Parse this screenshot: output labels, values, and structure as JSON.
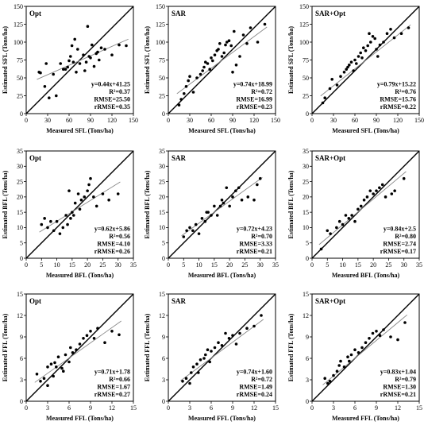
{
  "chart_data": [
    {
      "type": "scatter",
      "title": "Opt",
      "xlabel": "Measured SFL (Tons/ha)",
      "ylabel": "Estimated SFL (Tons/ha)",
      "xlim": [
        0,
        150
      ],
      "ylim": [
        0,
        150
      ],
      "xticks": [
        0,
        30,
        60,
        90,
        120,
        150
      ],
      "yticks": [
        0,
        25,
        50,
        75,
        100,
        125,
        150
      ],
      "fit": {
        "slope": 0.44,
        "intercept": 41.25
      },
      "stats": [
        "y=0.44x+41.25",
        "R²=0.37",
        "RMSE=25.50",
        "rRMSE=0.35"
      ],
      "points": [
        [
          18,
          58
        ],
        [
          20,
          57
        ],
        [
          26,
          38
        ],
        [
          28,
          70
        ],
        [
          32,
          22
        ],
        [
          38,
          55
        ],
        [
          42,
          25
        ],
        [
          48,
          70
        ],
        [
          52,
          62
        ],
        [
          55,
          62
        ],
        [
          58,
          65
        ],
        [
          60,
          74
        ],
        [
          62,
          80
        ],
        [
          64,
          95
        ],
        [
          66,
          72
        ],
        [
          68,
          104
        ],
        [
          70,
          58
        ],
        [
          72,
          90
        ],
        [
          75,
          70
        ],
        [
          80,
          82
        ],
        [
          82,
          60
        ],
        [
          84,
          72
        ],
        [
          86,
          122
        ],
        [
          88,
          80
        ],
        [
          90,
          78
        ],
        [
          92,
          96
        ],
        [
          95,
          66
        ],
        [
          98,
          84
        ],
        [
          100,
          86
        ],
        [
          102,
          75
        ],
        [
          105,
          92
        ],
        [
          110,
          90
        ],
        [
          120,
          82
        ],
        [
          130,
          96
        ],
        [
          140,
          95
        ]
      ]
    },
    {
      "type": "scatter",
      "title": "SAR",
      "xlabel": "Measured SFL (Tons/ha)",
      "ylabel": "Estimated SFL (Tons/ha)",
      "xlim": [
        0,
        150
      ],
      "ylim": [
        0,
        150
      ],
      "xticks": [
        0,
        30,
        60,
        90,
        120,
        150
      ],
      "yticks": [
        0,
        25,
        50,
        75,
        100,
        125,
        150
      ],
      "fit": {
        "slope": 0.74,
        "intercept": 18.99
      },
      "stats": [
        "y=0.74x+18.99",
        "R²=0.72",
        "RMSE=16.99",
        "rRMSE=0.23"
      ],
      "points": [
        [
          15,
          12
        ],
        [
          18,
          20
        ],
        [
          22,
          28
        ],
        [
          25,
          38
        ],
        [
          28,
          46
        ],
        [
          30,
          52
        ],
        [
          35,
          30
        ],
        [
          40,
          50
        ],
        [
          45,
          55
        ],
        [
          48,
          60
        ],
        [
          50,
          65
        ],
        [
          52,
          72
        ],
        [
          55,
          70
        ],
        [
          58,
          62
        ],
        [
          60,
          78
        ],
        [
          62,
          74
        ],
        [
          65,
          82
        ],
        [
          68,
          88
        ],
        [
          70,
          90
        ],
        [
          72,
          98
        ],
        [
          75,
          80
        ],
        [
          78,
          85
        ],
        [
          80,
          96
        ],
        [
          82,
          100
        ],
        [
          85,
          102
        ],
        [
          88,
          95
        ],
        [
          90,
          58
        ],
        [
          92,
          115
        ],
        [
          95,
          68
        ],
        [
          100,
          80
        ],
        [
          105,
          110
        ],
        [
          110,
          98
        ],
        [
          115,
          120
        ],
        [
          125,
          100
        ],
        [
          135,
          125
        ]
      ]
    },
    {
      "type": "scatter",
      "title": "SAR+Opt",
      "xlabel": "Measured SFL (Tons/ha)",
      "ylabel": "Estimated SFL (Tons/ha)",
      "xlim": [
        0,
        150
      ],
      "ylim": [
        0,
        150
      ],
      "xticks": [
        0,
        30,
        60,
        90,
        120,
        150
      ],
      "yticks": [
        0,
        25,
        50,
        75,
        100,
        125,
        150
      ],
      "fit": {
        "slope": 0.79,
        "intercept": 15.22
      },
      "stats": [
        "y=0.79x+15.22",
        "R²=0.76",
        "RMSE=15.76",
        "rRMSE=0.22"
      ],
      "points": [
        [
          15,
          15
        ],
        [
          18,
          22
        ],
        [
          25,
          35
        ],
        [
          28,
          48
        ],
        [
          35,
          40
        ],
        [
          40,
          52
        ],
        [
          45,
          58
        ],
        [
          48,
          62
        ],
        [
          50,
          65
        ],
        [
          52,
          68
        ],
        [
          55,
          72
        ],
        [
          58,
          60
        ],
        [
          60,
          75
        ],
        [
          62,
          70
        ],
        [
          65,
          80
        ],
        [
          68,
          85
        ],
        [
          70,
          78
        ],
        [
          72,
          92
        ],
        [
          75,
          88
        ],
        [
          78,
          95
        ],
        [
          80,
          112
        ],
        [
          82,
          100
        ],
        [
          85,
          108
        ],
        [
          88,
          105
        ],
        [
          90,
          90
        ],
        [
          92,
          80
        ],
        [
          95,
          96
        ],
        [
          100,
          100
        ],
        [
          105,
          112
        ],
        [
          110,
          118
        ],
        [
          115,
          106
        ],
        [
          125,
          112
        ],
        [
          135,
          120
        ]
      ]
    },
    {
      "type": "scatter",
      "title": "Opt",
      "xlabel": "Measured BFL (Tons/ha)",
      "ylabel": "Estimated BFL (Tons/ha)",
      "xlim": [
        0,
        35
      ],
      "ylim": [
        0,
        35
      ],
      "xticks": [
        0,
        5,
        10,
        15,
        20,
        25,
        30,
        35
      ],
      "yticks": [
        0,
        5,
        10,
        15,
        20,
        25,
        30,
        35
      ],
      "fit": {
        "slope": 0.62,
        "intercept": 5.86
      },
      "stats": [
        "y=0.62x+5.86",
        "R²=0.56",
        "RMSE=4.10",
        "rRMSE=0.26"
      ],
      "points": [
        [
          5,
          11
        ],
        [
          6,
          13
        ],
        [
          7,
          10
        ],
        [
          8,
          12
        ],
        [
          9,
          9
        ],
        [
          10,
          12
        ],
        [
          11,
          8
        ],
        [
          12,
          10
        ],
        [
          13,
          14
        ],
        [
          13.5,
          11
        ],
        [
          14,
          22
        ],
        [
          14.5,
          13
        ],
        [
          15,
          15
        ],
        [
          15.5,
          14
        ],
        [
          16,
          18
        ],
        [
          17,
          21
        ],
        [
          17.5,
          16
        ],
        [
          18,
          19
        ],
        [
          19,
          20
        ],
        [
          20,
          22
        ],
        [
          20.5,
          24
        ],
        [
          21,
          26
        ],
        [
          22,
          20
        ],
        [
          23,
          17
        ],
        [
          25,
          21
        ],
        [
          27,
          19
        ],
        [
          30,
          21
        ]
      ]
    },
    {
      "type": "scatter",
      "title": "SAR",
      "xlabel": "Measured BFL (Tons/ha)",
      "ylabel": "Estimated BFL (Tons/ha)",
      "xlim": [
        0,
        35
      ],
      "ylim": [
        0,
        35
      ],
      "xticks": [
        0,
        5,
        10,
        15,
        20,
        25,
        30,
        35
      ],
      "yticks": [
        0,
        5,
        10,
        15,
        20,
        25,
        30,
        35
      ],
      "fit": {
        "slope": 0.72,
        "intercept": 4.23
      },
      "stats": [
        "y=0.72x+4.23",
        "R²=0.70",
        "RMSE=3.33",
        "rRMSE=0.21"
      ],
      "points": [
        [
          5,
          7
        ],
        [
          6,
          9
        ],
        [
          7,
          10
        ],
        [
          8,
          9
        ],
        [
          9,
          11
        ],
        [
          10,
          8
        ],
        [
          11,
          13
        ],
        [
          12,
          12
        ],
        [
          12.5,
          15
        ],
        [
          13,
          15
        ],
        [
          14,
          14
        ],
        [
          15,
          17
        ],
        [
          16,
          14
        ],
        [
          17,
          17
        ],
        [
          17.5,
          19
        ],
        [
          18,
          18
        ],
        [
          19,
          23
        ],
        [
          20,
          17
        ],
        [
          21,
          20
        ],
        [
          22,
          22
        ],
        [
          23,
          23
        ],
        [
          24,
          19
        ],
        [
          26,
          20
        ],
        [
          28,
          19
        ],
        [
          29,
          24
        ],
        [
          30,
          26
        ]
      ]
    },
    {
      "type": "scatter",
      "title": "SAR+Opt",
      "xlabel": "Measured BFL (Tons/ha)",
      "ylabel": "Estimated BFL (Tons/ha)",
      "xlim": [
        0,
        35
      ],
      "ylim": [
        0,
        35
      ],
      "xticks": [
        0,
        5,
        10,
        15,
        20,
        25,
        30,
        35
      ],
      "yticks": [
        0,
        5,
        10,
        15,
        20,
        25,
        30,
        35
      ],
      "fit": {
        "slope": 0.84,
        "intercept": 2.5
      },
      "stats": [
        "y=0.84x+2.5",
        "R²=0.80",
        "RMSE=2.74",
        "rRMSE=0.17"
      ],
      "points": [
        [
          3,
          3
        ],
        [
          5,
          9
        ],
        [
          6,
          8
        ],
        [
          8,
          10
        ],
        [
          9,
          12
        ],
        [
          10,
          11
        ],
        [
          11,
          14
        ],
        [
          12,
          13
        ],
        [
          13,
          14
        ],
        [
          14,
          12
        ],
        [
          15,
          16
        ],
        [
          16,
          17
        ],
        [
          17,
          19
        ],
        [
          18,
          20
        ],
        [
          19,
          22
        ],
        [
          20,
          21
        ],
        [
          21,
          22
        ],
        [
          22,
          23
        ],
        [
          23,
          24
        ],
        [
          24,
          20
        ],
        [
          26,
          21
        ],
        [
          27,
          22
        ],
        [
          30,
          26
        ]
      ]
    },
    {
      "type": "scatter",
      "title": "Opt",
      "xlabel": "Measured FFL (Tons/ha)",
      "ylabel": "Estimated FFL (Tons/ha)",
      "xlim": [
        0,
        15
      ],
      "ylim": [
        0,
        15
      ],
      "xticks": [
        0,
        3,
        6,
        9,
        12,
        15
      ],
      "yticks": [
        0,
        3,
        6,
        9,
        12,
        15
      ],
      "fit": {
        "slope": 0.71,
        "intercept": 1.78
      },
      "stats": [
        "y=0.71x+1.78",
        "R²=0.66",
        "RMSE=1.67",
        "rRMSE=0.27"
      ],
      "points": [
        [
          1.5,
          3.8
        ],
        [
          2,
          2.8
        ],
        [
          2.5,
          3.2
        ],
        [
          3,
          2.2
        ],
        [
          3,
          4.8
        ],
        [
          3.5,
          5.2
        ],
        [
          3.8,
          3.5
        ],
        [
          4,
          5.4
        ],
        [
          4.2,
          4.8
        ],
        [
          4.5,
          6.2
        ],
        [
          5,
          4.6
        ],
        [
          5.2,
          4.2
        ],
        [
          5.5,
          6.5
        ],
        [
          6,
          5.5
        ],
        [
          6.2,
          7.5
        ],
        [
          6.5,
          6.8
        ],
        [
          7,
          7.2
        ],
        [
          7.5,
          8
        ],
        [
          8,
          8.8
        ],
        [
          8.5,
          9.2
        ],
        [
          9,
          9.8
        ],
        [
          9.5,
          8.8
        ],
        [
          10,
          10.2
        ],
        [
          11,
          8.2
        ],
        [
          12,
          9.8
        ],
        [
          13,
          9.3
        ]
      ]
    },
    {
      "type": "scatter",
      "title": "SAR",
      "xlabel": "Measured FFL (Tons/ha)",
      "ylabel": "Estimated FFL (Tons/ha)",
      "xlim": [
        0,
        15
      ],
      "ylim": [
        0,
        15
      ],
      "xticks": [
        0,
        3,
        6,
        9,
        12,
        15
      ],
      "yticks": [
        0,
        3,
        6,
        9,
        12,
        15
      ],
      "fit": {
        "slope": 0.74,
        "intercept": 1.6
      },
      "stats": [
        "y=0.74x+1.60",
        "R²=0.72",
        "RMSE=1.49",
        "rRMSE=0.24"
      ],
      "points": [
        [
          2,
          2.8
        ],
        [
          2.5,
          3.2
        ],
        [
          3,
          2.5
        ],
        [
          3.2,
          4
        ],
        [
          3.5,
          4.8
        ],
        [
          4,
          5.2
        ],
        [
          4.2,
          4
        ],
        [
          4.5,
          5.8
        ],
        [
          5,
          6
        ],
        [
          5.2,
          6.5
        ],
        [
          5.5,
          7.2
        ],
        [
          5.8,
          5.5
        ],
        [
          6,
          7
        ],
        [
          6.5,
          7.5
        ],
        [
          7,
          8.2
        ],
        [
          7.5,
          7.8
        ],
        [
          8,
          9.5
        ],
        [
          8.5,
          8.8
        ],
        [
          9,
          9.2
        ],
        [
          9.5,
          8
        ],
        [
          10,
          9.5
        ],
        [
          11,
          10.2
        ],
        [
          12,
          10.5
        ],
        [
          13,
          12
        ]
      ]
    },
    {
      "type": "scatter",
      "title": "SAR+Opt",
      "xlabel": "Measured FFL (Tons/ha)",
      "ylabel": "Estimated FFL (Tons/ha)",
      "xlim": [
        0,
        15
      ],
      "ylim": [
        0,
        15
      ],
      "xticks": [
        0,
        3,
        6,
        9,
        12,
        15
      ],
      "yticks": [
        0,
        3,
        6,
        9,
        12,
        15
      ],
      "fit": {
        "slope": 0.83,
        "intercept": 1.04
      },
      "stats": [
        "y=0.83x+1.04",
        "R²=0.79",
        "RMSE=1.30",
        "rRMSE=0.21"
      ],
      "points": [
        [
          1.8,
          3.2
        ],
        [
          2.2,
          2.5
        ],
        [
          2.5,
          2.8
        ],
        [
          3,
          3.6
        ],
        [
          3.5,
          4.2
        ],
        [
          3.8,
          5
        ],
        [
          4,
          5.6
        ],
        [
          4.5,
          4.8
        ],
        [
          5,
          6.2
        ],
        [
          5.2,
          5.6
        ],
        [
          5.5,
          6.5
        ],
        [
          6,
          7.2
        ],
        [
          6.5,
          6.8
        ],
        [
          7,
          7.5
        ],
        [
          7.5,
          8.2
        ],
        [
          8,
          8.8
        ],
        [
          8.5,
          9.5
        ],
        [
          9,
          9.8
        ],
        [
          9.5,
          9.2
        ],
        [
          10,
          10
        ],
        [
          11,
          9
        ],
        [
          12,
          8.6
        ],
        [
          13,
          11
        ]
      ]
    }
  ]
}
